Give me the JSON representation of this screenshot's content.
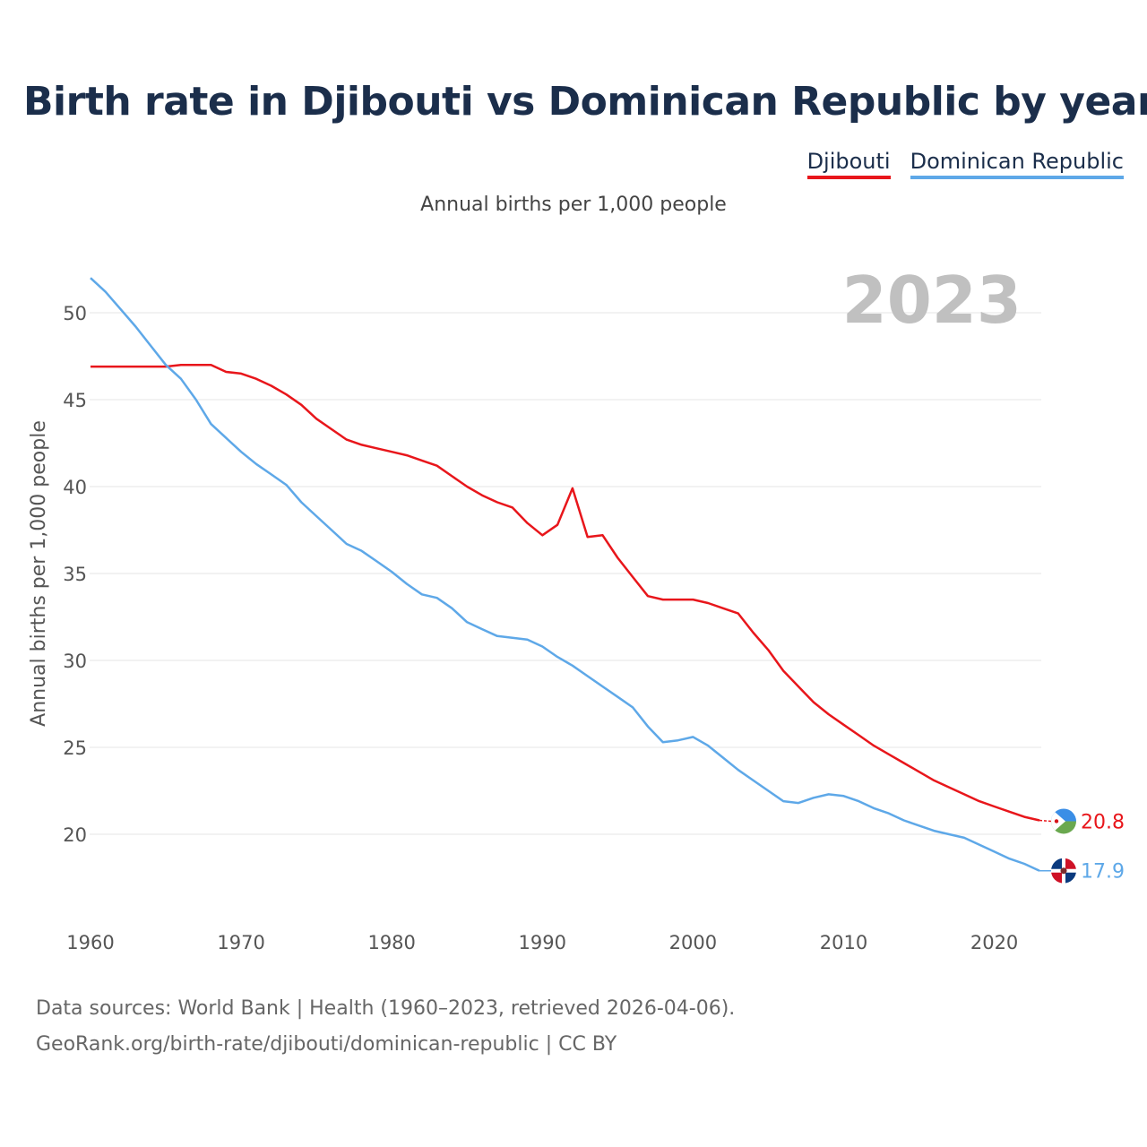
{
  "title": "Birth rate in Djibouti vs Dominican Republic by year",
  "subtitle": "Annual births per 1,000 people",
  "legend": [
    {
      "label": "Djibouti",
      "color": "#e8161b"
    },
    {
      "label": "Dominican Republic",
      "color": "#5ea8e8"
    }
  ],
  "year_watermark": "2023",
  "sources": {
    "line1": "Data sources: World Bank | Health (1960–2023, retrieved 2026-04-06).",
    "line2": "GeoRank.org/birth-rate/djibouti/dominican-republic | CC BY"
  },
  "end_labels": {
    "djibouti": "20.8",
    "dominican": "17.9"
  },
  "flags": {
    "djibouti": "djibouti-flag-icon",
    "dominican": "dominican-republic-flag-icon"
  },
  "chart_data": {
    "type": "line",
    "title": "Birth rate in Djibouti vs Dominican Republic by year",
    "xlabel": "",
    "ylabel": "Annual births per 1,000 people",
    "xlim": [
      1960,
      2023
    ],
    "ylim": [
      16,
      52.5
    ],
    "xticks": [
      1960,
      1970,
      1980,
      1990,
      2000,
      2010,
      2020
    ],
    "yticks": [
      20,
      25,
      30,
      35,
      40,
      45,
      50
    ],
    "grid": true,
    "x": [
      1960,
      1961,
      1962,
      1963,
      1964,
      1965,
      1966,
      1967,
      1968,
      1969,
      1970,
      1971,
      1972,
      1973,
      1974,
      1975,
      1976,
      1977,
      1978,
      1979,
      1980,
      1981,
      1982,
      1983,
      1984,
      1985,
      1986,
      1987,
      1988,
      1989,
      1990,
      1991,
      1992,
      1993,
      1994,
      1995,
      1996,
      1997,
      1998,
      1999,
      2000,
      2001,
      2002,
      2003,
      2004,
      2005,
      2006,
      2007,
      2008,
      2009,
      2010,
      2011,
      2012,
      2013,
      2014,
      2015,
      2016,
      2017,
      2018,
      2019,
      2020,
      2021,
      2022,
      2023
    ],
    "series": [
      {
        "name": "Djibouti",
        "color": "#e8161b",
        "values": [
          46.9,
          46.9,
          46.9,
          46.9,
          46.9,
          46.9,
          47.0,
          47.0,
          47.0,
          46.6,
          46.5,
          46.2,
          45.8,
          45.3,
          44.7,
          43.9,
          43.3,
          42.7,
          42.4,
          42.2,
          42.0,
          41.8,
          41.5,
          41.2,
          40.6,
          40.0,
          39.5,
          39.1,
          38.8,
          37.9,
          37.2,
          37.8,
          39.9,
          37.1,
          37.2,
          35.9,
          34.8,
          33.7,
          33.5,
          33.5,
          33.5,
          33.3,
          33.0,
          32.7,
          31.6,
          30.6,
          29.4,
          28.5,
          27.6,
          26.9,
          26.3,
          25.7,
          25.1,
          24.6,
          24.1,
          23.6,
          23.1,
          22.7,
          22.3,
          21.9,
          21.6,
          21.3,
          21.0,
          20.8
        ]
      },
      {
        "name": "Dominican Republic",
        "color": "#5ea8e8",
        "values": [
          52.0,
          51.2,
          50.2,
          49.2,
          48.1,
          47.0,
          46.2,
          45.0,
          43.6,
          42.8,
          42.0,
          41.3,
          40.7,
          40.1,
          39.1,
          38.3,
          37.5,
          36.7,
          36.3,
          35.7,
          35.1,
          34.4,
          33.8,
          33.6,
          33.0,
          32.2,
          31.8,
          31.4,
          31.3,
          31.2,
          30.8,
          30.2,
          29.7,
          29.1,
          28.5,
          27.9,
          27.3,
          26.2,
          25.3,
          25.4,
          25.6,
          25.1,
          24.4,
          23.7,
          23.1,
          22.5,
          21.9,
          21.8,
          22.1,
          22.3,
          22.2,
          21.9,
          21.5,
          21.2,
          20.8,
          20.5,
          20.2,
          20.0,
          19.8,
          19.4,
          19.0,
          18.6,
          18.3,
          17.9
        ]
      }
    ]
  }
}
